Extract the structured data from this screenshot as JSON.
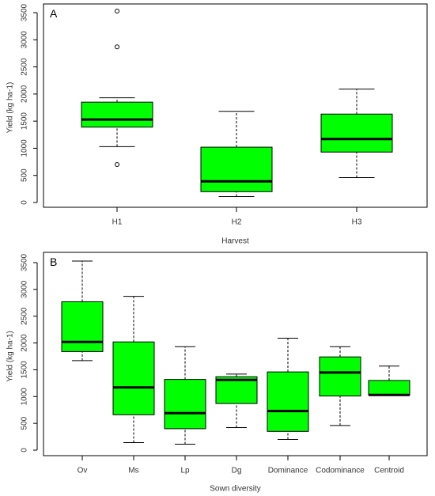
{
  "chart_data": [
    {
      "type": "boxplot",
      "panel_label": "A",
      "xlabel": "Harvest",
      "ylabel": "Yield (kg ha-1)",
      "ylim": [
        0,
        3500
      ],
      "yticks": [
        0,
        500,
        1000,
        1500,
        2000,
        2500,
        3000,
        3500
      ],
      "grid": false,
      "box_color": "#00ff00",
      "categories": [
        "H1",
        "H2",
        "H3"
      ],
      "boxes": [
        {
          "min": 1030,
          "q1": 1390,
          "median": 1530,
          "q3": 1850,
          "max": 1930,
          "outliers": [
            700,
            2870,
            3530
          ]
        },
        {
          "min": 110,
          "q1": 200,
          "median": 390,
          "q3": 1020,
          "max": 1680,
          "outliers": []
        },
        {
          "min": 460,
          "q1": 930,
          "median": 1170,
          "q3": 1630,
          "max": 2090,
          "outliers": []
        }
      ]
    },
    {
      "type": "boxplot",
      "panel_label": "B",
      "xlabel": "Sown diversity",
      "ylabel": "Yield (kg ha-1)",
      "ylim": [
        0,
        3500
      ],
      "yticks": [
        0,
        500,
        1000,
        1500,
        2000,
        2500,
        3000,
        3500
      ],
      "grid": false,
      "box_color": "#00ff00",
      "categories": [
        "Ov",
        "Ms",
        "Lp",
        "Dg",
        "Dominance",
        "Codominance",
        "Centroid"
      ],
      "boxes": [
        {
          "min": 1670,
          "q1": 1840,
          "median": 2020,
          "q3": 2770,
          "max": 3530,
          "outliers": []
        },
        {
          "min": 140,
          "q1": 660,
          "median": 1170,
          "q3": 2020,
          "max": 2870,
          "outliers": []
        },
        {
          "min": 110,
          "q1": 400,
          "median": 690,
          "q3": 1320,
          "max": 1930,
          "outliers": []
        },
        {
          "min": 420,
          "q1": 870,
          "median": 1310,
          "q3": 1370,
          "max": 1420,
          "outliers": []
        },
        {
          "min": 200,
          "q1": 350,
          "median": 730,
          "q3": 1460,
          "max": 2090,
          "outliers": []
        },
        {
          "min": 460,
          "q1": 1010,
          "median": 1450,
          "q3": 1740,
          "max": 1930,
          "outliers": []
        },
        {
          "min": 1020,
          "q1": 1030,
          "median": 1030,
          "q3": 1300,
          "max": 1570,
          "outliers": []
        }
      ]
    }
  ]
}
